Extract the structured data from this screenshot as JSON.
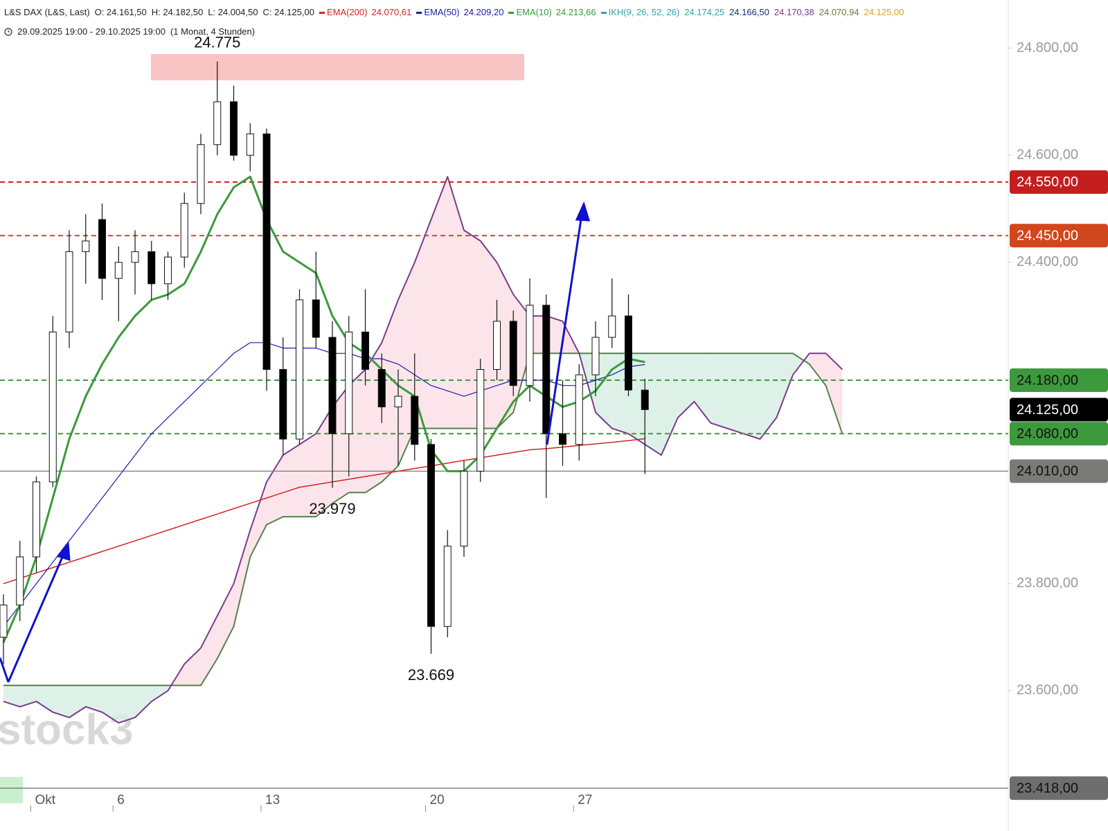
{
  "chart_data": {
    "type": "candlestick",
    "title": "L&S DAX (L&S, Last)",
    "ohlc_labels": [
      "O: 24.161,50",
      "H: 24.182,50",
      "L: 24.004,50",
      "C: 24.125,00"
    ],
    "subtitle": "29.09.2025 19:00 - 29.10.2025 19:00",
    "period": "(1 Monat, 4 Stunden)",
    "watermark": "stock3",
    "categories": [
      null,
      null,
      "Okt",
      null,
      null,
      null,
      null,
      "6",
      null,
      null,
      null,
      null,
      null,
      null,
      null,
      null,
      "13",
      null,
      null,
      null,
      null,
      null,
      null,
      null,
      null,
      null,
      "20",
      null,
      null,
      null,
      null,
      null,
      null,
      null,
      null,
      "27",
      null,
      null,
      null,
      null,
      null,
      null,
      null,
      null,
      null,
      null,
      null,
      null,
      null,
      null,
      null,
      null
    ],
    "open": [
      23700,
      23760,
      23850,
      23990,
      24270,
      24420,
      24480,
      24370,
      24400,
      24420,
      24360,
      24410,
      24510,
      24620,
      24700,
      24600,
      24640,
      24200,
      24070,
      24330,
      24260,
      24080,
      24270,
      24200,
      24130,
      24150,
      24060,
      23720,
      23870,
      24010,
      24200,
      24290,
      24170,
      24320,
      24080,
      24060,
      24190,
      24260,
      24300,
      24161.5,
      null,
      null,
      null,
      null,
      null,
      null,
      null,
      null,
      null,
      null,
      null,
      null
    ],
    "high": [
      23780,
      23880,
      24000,
      24300,
      24460,
      24490,
      24510,
      24430,
      24460,
      24440,
      24420,
      24530,
      24640,
      24775,
      24730,
      24660,
      24650,
      24260,
      24350,
      24420,
      24290,
      24300,
      24350,
      24230,
      24200,
      24230,
      24070,
      23900,
      24030,
      24220,
      24330,
      24310,
      24370,
      24340,
      24180,
      24210,
      24290,
      24370,
      24340,
      24182.5,
      null,
      null,
      null,
      null,
      null,
      null,
      null,
      null,
      null,
      null,
      null,
      null
    ],
    "low": [
      23650,
      23730,
      23820,
      23980,
      24240,
      24360,
      24330,
      24290,
      24340,
      24330,
      24330,
      24390,
      24490,
      24600,
      24590,
      24570,
      24160,
      24040,
      24060,
      24240,
      23979,
      24000,
      24170,
      24100,
      24020,
      24030,
      23669,
      23700,
      23850,
      23990,
      24180,
      24150,
      24140,
      23960,
      24020,
      24030,
      24150,
      24240,
      24150,
      24004.5,
      null,
      null,
      null,
      null,
      null,
      null,
      null,
      null,
      null,
      null,
      null,
      null
    ],
    "close": [
      23760,
      23850,
      23990,
      24270,
      24420,
      24440,
      24370,
      24400,
      24420,
      24360,
      24410,
      24510,
      24620,
      24700,
      24600,
      24640,
      24200,
      24070,
      24330,
      24260,
      24080,
      24270,
      24200,
      24130,
      24150,
      24060,
      23720,
      23870,
      24010,
      24200,
      24290,
      24170,
      24320,
      24080,
      24060,
      24190,
      24260,
      24300,
      24161.5,
      24125,
      null,
      null,
      null,
      null,
      null,
      null,
      null,
      null,
      null,
      null,
      null,
      null
    ],
    "up_color": "#ffffff",
    "down_color": "#000000",
    "series": [
      {
        "name": "EMA(200)",
        "legend_value": "24.070,61",
        "color": "#d62222",
        "width": 1.5,
        "values": [
          23800,
          23810,
          23820,
          23830,
          23840,
          23850,
          23860,
          23870,
          23880,
          23890,
          23900,
          23910,
          23920,
          23930,
          23940,
          23950,
          23960,
          23970,
          23980,
          23985,
          23990,
          23995,
          24000,
          24005,
          24010,
          24015,
          24020,
          24025,
          24030,
          24035,
          24040,
          24045,
          24050,
          24052,
          24055,
          24058,
          24061,
          24064,
          24067,
          24070.61,
          null,
          null,
          null,
          null,
          null,
          null,
          null,
          null,
          null,
          null,
          null,
          null
        ]
      },
      {
        "name": "EMA(50)",
        "legend_value": "24.209,20",
        "color": "#1c1ca8",
        "width": 1.2,
        "values": [
          23720,
          23760,
          23800,
          23840,
          23880,
          23920,
          23960,
          24000,
          24040,
          24080,
          24110,
          24140,
          24170,
          24200,
          24230,
          24250,
          24250,
          24240,
          24240,
          24240,
          24230,
          24230,
          24220,
          24220,
          24210,
          24190,
          24170,
          24160,
          24150,
          24160,
          24170,
          24180,
          24180,
          24180,
          24170,
          24170,
          24180,
          24190,
          24205,
          24209.2,
          null,
          null,
          null,
          null,
          null,
          null,
          null,
          null,
          null,
          null,
          null,
          null
        ]
      },
      {
        "name": "EMA(10)",
        "legend_value": "24.213,66",
        "color": "#3a9a3a",
        "width": 3,
        "values": [
          23690,
          23760,
          23850,
          23960,
          24070,
          24150,
          24210,
          24260,
          24300,
          24330,
          24340,
          24360,
          24420,
          24490,
          24540,
          24560,
          24480,
          24420,
          24400,
          24380,
          24300,
          24250,
          24230,
          24200,
          24170,
          24150,
          24050,
          24010,
          24010,
          24040,
          24090,
          24140,
          24170,
          24150,
          24130,
          24140,
          24160,
          24200,
          24220,
          24213.66,
          null,
          null,
          null,
          null,
          null,
          null,
          null,
          null,
          null,
          null,
          null,
          null
        ]
      }
    ],
    "ichimoku": {
      "name": "IKH(9, 26, 52, 26)",
      "color": "#2f9fb0",
      "legend_values": [
        "24.174,25",
        "24.166,50",
        "24.170,38",
        "24.070,94",
        "24.125,00"
      ],
      "legend_colors": [
        "#2f9fb0",
        "#1c2a6a",
        "#7a3a8a",
        "#6a7a3a",
        "#e0a020"
      ],
      "fill_up": "#d8efe5",
      "fill_down": "#fbe1e6",
      "span_a": {
        "color": "#56804a",
        "values": [
          23610,
          23610,
          23610,
          23610,
          23610,
          23610,
          23610,
          23610,
          23610,
          23610,
          23610,
          23610,
          23610,
          23660,
          23720,
          23850,
          23910,
          23925,
          23925,
          23925,
          23950,
          23970,
          23970,
          23990,
          24020,
          24090,
          24090,
          24090,
          24090,
          24090,
          24090,
          24120,
          24230,
          24230,
          24230,
          24230,
          24230,
          24230,
          24230,
          24230,
          24230,
          24230,
          24230,
          24230,
          24230,
          24230,
          24230,
          24230,
          24230,
          24210,
          24170,
          24080
        ]
      },
      "span_b": {
        "color": "#7a3a8a",
        "values": [
          23580,
          23570,
          23580,
          23560,
          23550,
          23570,
          23560,
          23540,
          23550,
          23580,
          23600,
          23650,
          23680,
          23740,
          23800,
          23900,
          23990,
          24040,
          24060,
          24080,
          24130,
          24170,
          24200,
          24250,
          24330,
          24400,
          24480,
          24560,
          24460,
          24440,
          24400,
          24340,
          24300,
          24300,
          24290,
          24230,
          24120,
          24090,
          24080,
          24060,
          24040,
          24110,
          24140,
          24100,
          24090,
          24080,
          24070,
          24110,
          24190,
          24230,
          24230,
          24200
        ]
      }
    },
    "levels": [
      {
        "value": 24550,
        "label": "24.550,00",
        "color": "#c41e1e",
        "text_color": "#ffffff",
        "line": "dashed"
      },
      {
        "value": 24450,
        "label": "24.450,00",
        "color": "#d2461c",
        "text_color": "#ffffff",
        "line": "dashed"
      },
      {
        "value": 24180,
        "label": "24.180,00",
        "color": "#3c9a3c",
        "text_color": "#111111",
        "line": "dashed"
      },
      {
        "value": 24125,
        "label": "24.125,00",
        "color": "#000000",
        "text_color": "#ffffff",
        "line": "none"
      },
      {
        "value": 24080,
        "label": "24.080,00",
        "color": "#3c9a3c",
        "text_color": "#111111",
        "line": "dashed"
      },
      {
        "value": 24010,
        "label": "24.010,00",
        "color": "#7a7a78",
        "text_color": "#111111",
        "line": "solid"
      },
      {
        "value": 23418,
        "label": "23.418,00",
        "color": "#6e6e6e",
        "text_color": "#111111",
        "line": "solid"
      }
    ],
    "annotations": [
      {
        "value": 24775,
        "label": "24.775"
      },
      {
        "value": 23979,
        "label": "23.979"
      },
      {
        "value": 23669,
        "label": "23.669"
      }
    ],
    "ylim": [
      23338,
      24890
    ],
    "yticks": [
      {
        "value": 24800,
        "label": "24.800,00"
      },
      {
        "value": 24600,
        "label": "24.600,00"
      },
      {
        "value": 24400,
        "label": "24.400,00"
      },
      {
        "value": 23800,
        "label": "23.800,00"
      },
      {
        "value": 23600,
        "label": "23.600,00"
      }
    ]
  }
}
